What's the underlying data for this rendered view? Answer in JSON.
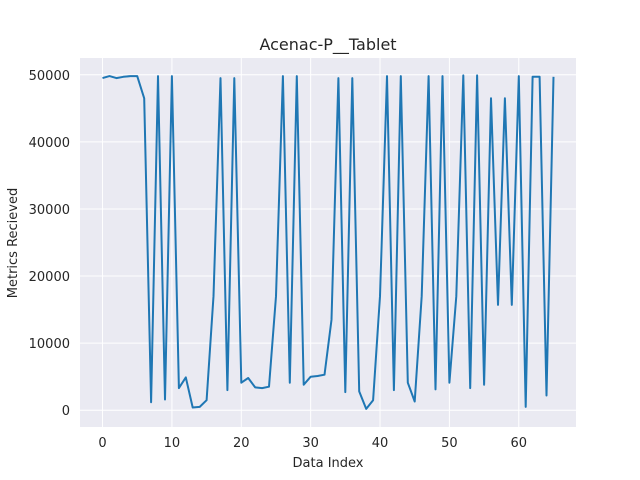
{
  "chart_data": {
    "type": "line",
    "title": "Acenac-P__Tablet",
    "xlabel": "Data Index",
    "ylabel": "Metrics Recieved",
    "xlim": [
      -3.25,
      68.25
    ],
    "ylim": [
      -2500,
      52500
    ],
    "xticks": [
      0,
      10,
      20,
      30,
      40,
      50,
      60
    ],
    "yticks": [
      0,
      10000,
      20000,
      30000,
      40000,
      50000
    ],
    "grid": true,
    "line_color": "#1f77b4",
    "background_color": "#eaeaf2",
    "series": [
      {
        "x": [
          0,
          1,
          2,
          3,
          4,
          5,
          6,
          7,
          8,
          9,
          10,
          11,
          12,
          13,
          14,
          15,
          16,
          17,
          18,
          19,
          20,
          21,
          22,
          23,
          24,
          25,
          26,
          27,
          28,
          29,
          30,
          31,
          32,
          33,
          34,
          35,
          36,
          37,
          38,
          39,
          40,
          41,
          42,
          43,
          44,
          45,
          46,
          47,
          48,
          49,
          50,
          51,
          52,
          53,
          54,
          55,
          56,
          57,
          58,
          59,
          60,
          61,
          62,
          63,
          64,
          65
        ],
        "values": [
          49500,
          49800,
          49500,
          49700,
          49800,
          49800,
          46500,
          1200,
          49800,
          1600,
          49800,
          3300,
          4900,
          400,
          500,
          1500,
          17000,
          49500,
          3000,
          49500,
          4100,
          4800,
          3400,
          3300,
          3500,
          17000,
          49800,
          4100,
          49800,
          3800,
          5000,
          5100,
          5300,
          13500,
          49500,
          2700,
          49500,
          2800,
          200,
          1500,
          17000,
          49800,
          3000,
          49800,
          4100,
          1300,
          17000,
          49800,
          3100,
          49800,
          4100,
          17000,
          49900,
          3300,
          49900,
          3800,
          46500,
          15700,
          46500,
          15700,
          49800,
          500,
          49700,
          49700,
          2200,
          49700
        ]
      }
    ]
  }
}
